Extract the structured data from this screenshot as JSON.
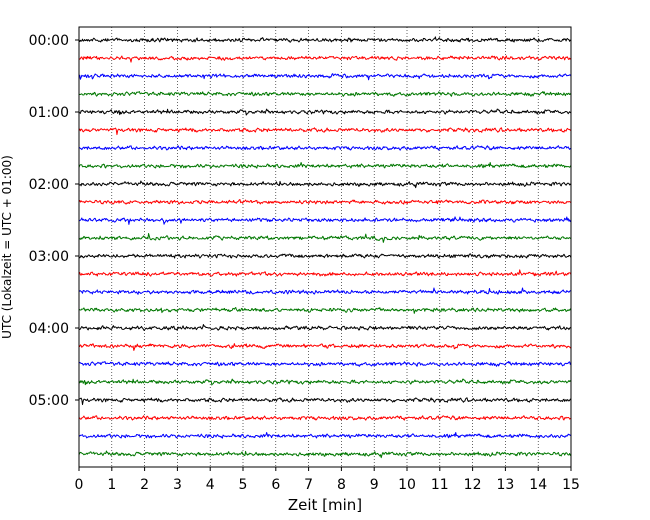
{
  "chart_data": {
    "type": "line",
    "title": "",
    "xlabel": "Zeit  [min]",
    "ylabel": "UTC (Lokalzeit = UTC + 01:00)",
    "xlim": [
      0,
      15
    ],
    "x_ticks": [
      "0",
      "1",
      "2",
      "3",
      "4",
      "5",
      "6",
      "7",
      "8",
      "9",
      "10",
      "11",
      "12",
      "13",
      "14",
      "15"
    ],
    "y_tick_labels": [
      "00:00",
      "01:00",
      "02:00",
      "03:00",
      "04:00",
      "05:00"
    ],
    "trace_interval_min": 15,
    "trace_count": 24,
    "trace_colors": [
      "#000000",
      "#ff0000",
      "#0000ff",
      "#007700"
    ],
    "grid": "vertical dotted at each minute"
  }
}
